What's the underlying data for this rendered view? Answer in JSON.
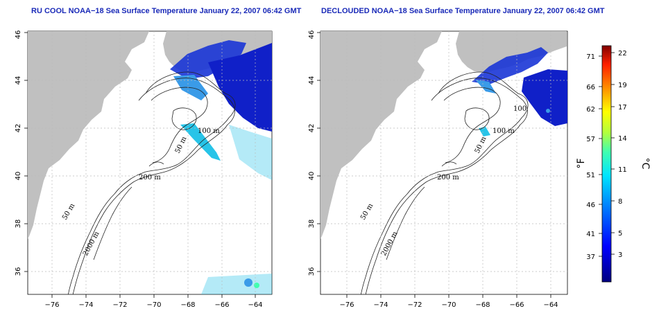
{
  "panels": [
    {
      "title": "RU COOL NOAA−18 Sea Surface Temperature January 22, 2007 06:42 GMT",
      "contour_labels": [
        "100 m",
        "50 m",
        "200 m",
        "50 m",
        "2000 m"
      ]
    },
    {
      "title": "DECLOUDED NOAA−18 Sea Surface Temperature January 22, 2007 06:42 GMT",
      "contour_labels": [
        "100",
        "100 m",
        "50 m",
        "200 m",
        "50 m",
        "2000 m"
      ]
    }
  ],
  "axes": {
    "latitude_ticks": [
      "36",
      "38",
      "40",
      "42",
      "44",
      "46"
    ],
    "longitude_ticks": [
      "−76",
      "−74",
      "−72",
      "−70",
      "−68",
      "−66",
      "−64"
    ],
    "lat_range": [
      35,
      46
    ],
    "lon_range": [
      -77,
      -63
    ]
  },
  "colorbar": {
    "fahrenheit_label": "°F",
    "celsius_label": "°C",
    "fahrenheit_ticks": [
      "71",
      "66",
      "62",
      "57",
      "51",
      "46",
      "41",
      "37"
    ],
    "celsius_ticks": [
      "22",
      "19",
      "17",
      "14",
      "11",
      "8",
      "5",
      "3"
    ]
  },
  "colors": {
    "title": "#1a2ab8",
    "land": "#c0c0c0",
    "ocean": "#ffffff",
    "grid": "#bbbbbb",
    "sst_cold": "#1a35d6",
    "sst_mid": "#27c4e8"
  }
}
